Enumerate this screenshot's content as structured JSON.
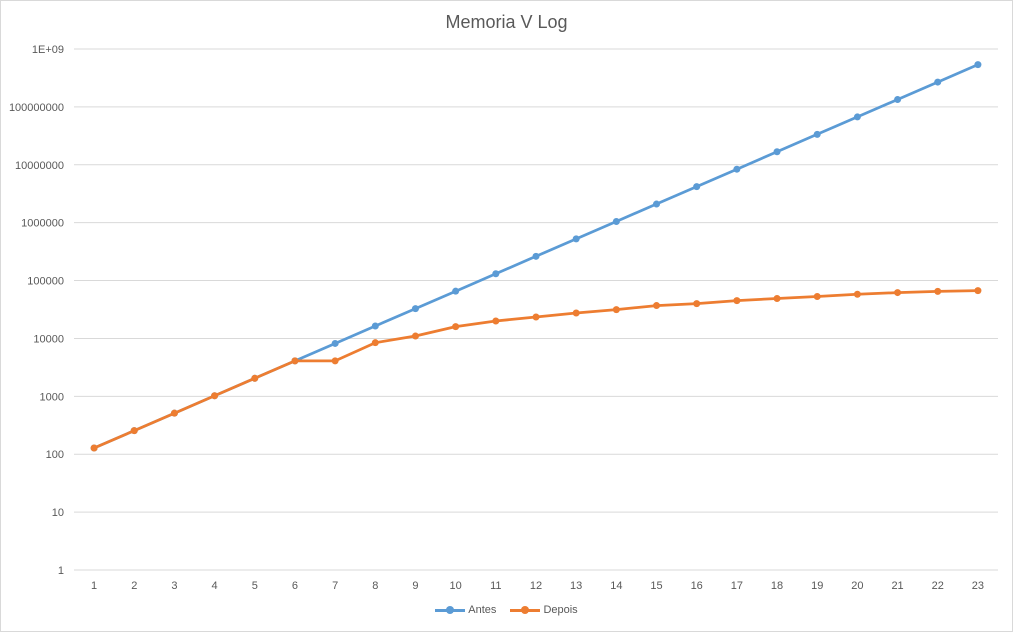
{
  "chart_data": {
    "type": "line",
    "title": "Memoria V Log",
    "xlabel": "",
    "ylabel": "",
    "yscale": "log",
    "ylim": [
      1,
      1000000000
    ],
    "y_tick_labels": [
      "1",
      "10",
      "100",
      "1000",
      "10000",
      "100000",
      "1000000",
      "10000000",
      "100000000",
      "1E+09"
    ],
    "x": [
      "1",
      "2",
      "3",
      "4",
      "5",
      "6",
      "7",
      "8",
      "9",
      "10",
      "11",
      "12",
      "13",
      "14",
      "15",
      "16",
      "17",
      "18",
      "19",
      "20",
      "21",
      "22",
      "23"
    ],
    "grid": "horizontal",
    "legend": "bottom",
    "series": [
      {
        "name": "Antes",
        "color": "#5b9bd5",
        "values": [
          128,
          256,
          512,
          1024,
          2048,
          4096,
          8192,
          16384,
          32768,
          65536,
          131072,
          262144,
          524288,
          1048576,
          2097152,
          4194304,
          8388608,
          16777216,
          33554432,
          67108864,
          134217728,
          268435456,
          536870912
        ]
      },
      {
        "name": "Depois",
        "color": "#ed7d31",
        "values": [
          128,
          256,
          512,
          1024,
          2048,
          4096,
          4096,
          8448,
          11000,
          16000,
          20000,
          23500,
          27500,
          31500,
          37000,
          40000,
          45000,
          49000,
          53000,
          58000,
          62000,
          65000,
          67000
        ]
      }
    ]
  }
}
